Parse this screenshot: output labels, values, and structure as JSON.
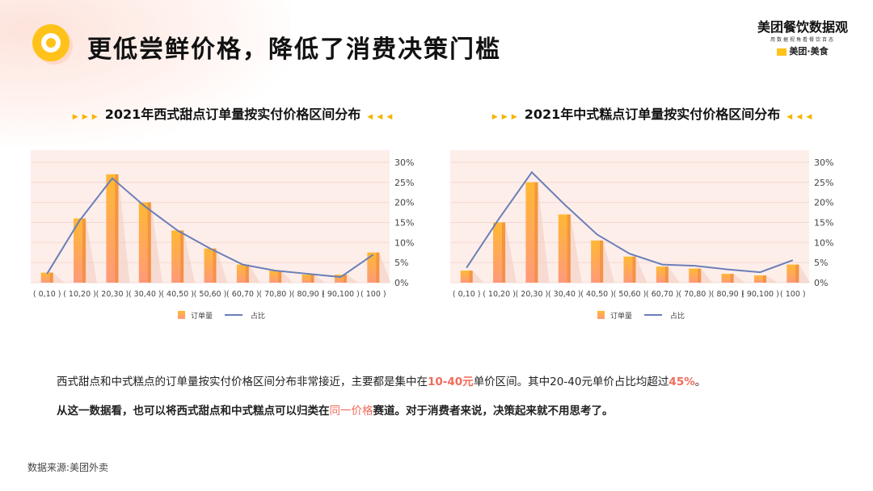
{
  "header": {
    "title": "更低尝鲜价格，降低了消费决策门槛",
    "icon": "location-pin-icon"
  },
  "logo": {
    "line1": "美团餐饮数据观",
    "line2": "用数据视角看餐饮百态",
    "line3": "美团·美食"
  },
  "colors": {
    "bar_top": "#ffb833",
    "bar_bottom": "#ff9a7a",
    "line": "#6b7fb8",
    "plot_bg": "#fdeeea",
    "highlight": "#f26b5b"
  },
  "chart_data": [
    {
      "type": "bar+line",
      "title": "2021年西式甜点订单量按实付价格区间分布",
      "categories": [
        "( 0,10 )",
        "( 10,20 )",
        "( 20,30 )",
        "( 30,40 )",
        "( 40,50 )",
        "( 50,60 )",
        "( 60,70 )",
        "( 70,80 )",
        "( 80,90 )",
        "( 90,100 )",
        "( 100 )"
      ],
      "series": [
        {
          "name": "订单量",
          "type": "bar",
          "values": [
            2.5,
            16,
            27,
            20,
            13,
            8.5,
            4.5,
            3,
            2,
            2,
            7.5
          ]
        },
        {
          "name": "占比",
          "type": "line",
          "axis": "right",
          "values": [
            2.2,
            15.5,
            26,
            19,
            13,
            8.5,
            4.5,
            3,
            2.2,
            1.4,
            7
          ]
        }
      ],
      "y_right_ticks": [
        "0%",
        "5%",
        "10%",
        "15%",
        "20%",
        "25%",
        "30%"
      ],
      "ylim": [
        0,
        33
      ],
      "grid": true,
      "legend": "bottom"
    },
    {
      "type": "bar+line",
      "title": "2021年中式糕点订单量按实付价格区间分布",
      "categories": [
        "( 0,10 )",
        "( 10,20 )",
        "( 20,30 )",
        "( 30,40 )",
        "( 40,50 )",
        "( 50,60 )",
        "( 60,70 )",
        "( 70,80 )",
        "( 80,90 )",
        "( 90,100 )",
        "( 100 )"
      ],
      "series": [
        {
          "name": "订单量",
          "type": "bar",
          "values": [
            3,
            15,
            25,
            17,
            10.5,
            6.5,
            4,
            3.5,
            2.2,
            1.8,
            4.5
          ]
        },
        {
          "name": "占比",
          "type": "line",
          "axis": "right",
          "values": [
            3.7,
            16,
            27.5,
            19.5,
            12,
            7.2,
            4.5,
            4.2,
            3.3,
            2.6,
            5.6
          ]
        }
      ],
      "y_right_ticks": [
        "0%",
        "5%",
        "10%",
        "15%",
        "20%",
        "25%",
        "30%"
      ],
      "ylim": [
        0,
        33
      ],
      "grid": true,
      "legend": "bottom"
    }
  ],
  "text": {
    "p1a": "西式甜点和中式糕点的订单量按实付价格区间分布非常接近，主要都是集中在",
    "p1b": "10-40元",
    "p1c": "单价区间。其中20-40元单价占比均超过",
    "p1d": "45%",
    "p1e": "。",
    "p2a": "从这一数据看，也可以将西式甜点和中式糕点可以归类在",
    "p2b": "同一价格",
    "p2c": "赛道。对于消费者来说，决策起来就不用思考了。"
  },
  "source": "数据来源:美团外卖",
  "subtitle_arrows": {
    "left": "▶ ▶ ▶",
    "right": "◀ ◀ ◀"
  }
}
